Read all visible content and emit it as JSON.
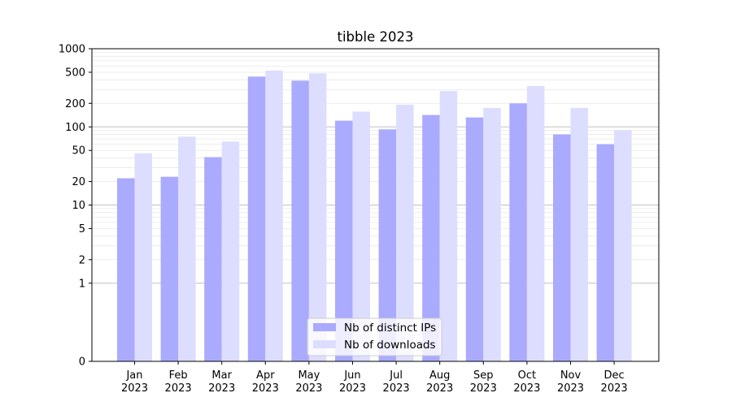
{
  "chart_data": {
    "type": "bar",
    "title": "tibble 2023",
    "xlabel": "",
    "ylabel": "",
    "yscale": "symlog",
    "ylim": [
      0,
      1000
    ],
    "yticks": [
      {
        "value": 0,
        "label": "0"
      },
      {
        "value": 1,
        "label": "1"
      },
      {
        "value": 2,
        "label": "2"
      },
      {
        "value": 5,
        "label": "5"
      },
      {
        "value": 10,
        "label": "10"
      },
      {
        "value": 20,
        "label": "20"
      },
      {
        "value": 50,
        "label": "50"
      },
      {
        "value": 100,
        "label": "100"
      },
      {
        "value": 200,
        "label": "200"
      },
      {
        "value": 500,
        "label": "500"
      },
      {
        "value": 1000,
        "label": "1000"
      }
    ],
    "categories": [
      {
        "month": "Jan",
        "year": "2023"
      },
      {
        "month": "Feb",
        "year": "2023"
      },
      {
        "month": "Mar",
        "year": "2023"
      },
      {
        "month": "Apr",
        "year": "2023"
      },
      {
        "month": "May",
        "year": "2023"
      },
      {
        "month": "Jun",
        "year": "2023"
      },
      {
        "month": "Jul",
        "year": "2023"
      },
      {
        "month": "Aug",
        "year": "2023"
      },
      {
        "month": "Sep",
        "year": "2023"
      },
      {
        "month": "Oct",
        "year": "2023"
      },
      {
        "month": "Nov",
        "year": "2023"
      },
      {
        "month": "Dec",
        "year": "2023"
      }
    ],
    "series": [
      {
        "name": "Nb of distinct IPs",
        "color": "#aaaaff",
        "values": [
          22,
          23,
          41,
          440,
          390,
          120,
          93,
          142,
          132,
          200,
          80,
          60
        ]
      },
      {
        "name": "Nb of downloads",
        "color": "#ddddff",
        "values": [
          46,
          75,
          65,
          525,
          485,
          157,
          192,
          288,
          175,
          335,
          175,
          91
        ]
      }
    ],
    "grid": true,
    "legend_position": "bottom-center"
  }
}
